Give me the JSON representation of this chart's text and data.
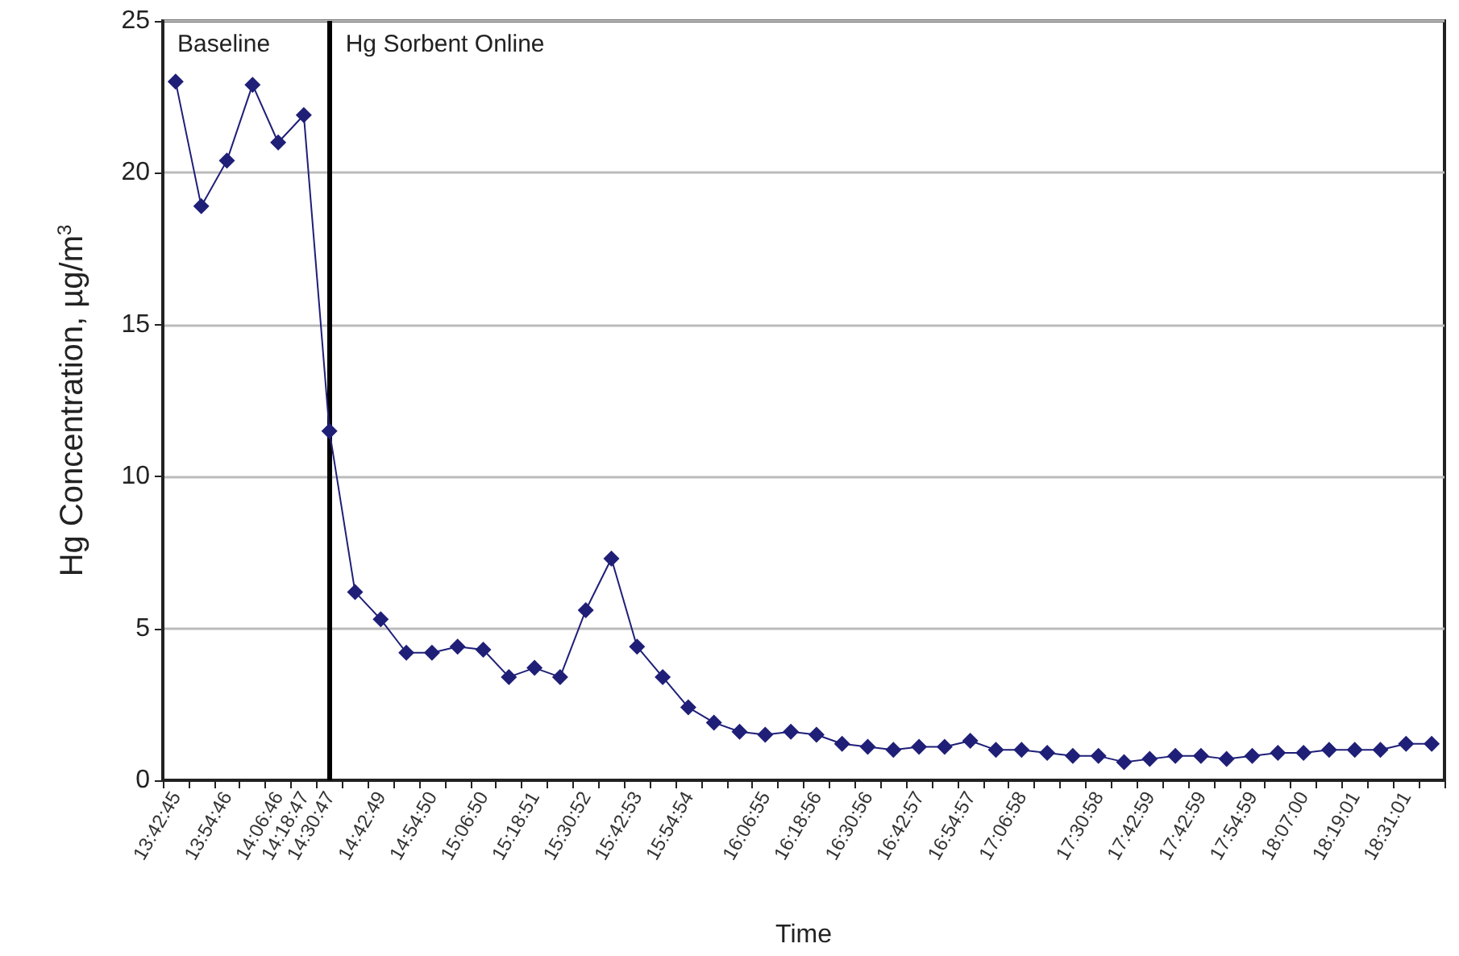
{
  "chart_data": {
    "type": "line",
    "xlabel": "Time",
    "ylabel": "Hg Concentration, µg/m$^{3}$",
    "categories": [
      "13:42:45",
      null,
      "13:54:46",
      null,
      "14:06:46",
      "14:18:47",
      "14:30:47",
      null,
      "14:42:49",
      null,
      "14:54:50",
      null,
      "15:06:50",
      null,
      "15:18:51",
      null,
      "15:30:52",
      null,
      "15:42:53",
      null,
      "15:54:54",
      null,
      null,
      "16:06:55",
      null,
      "16:18:56",
      null,
      "16:30:56",
      null,
      "16:42:57",
      null,
      "16:54:57",
      null,
      "17:06:58",
      null,
      null,
      "17:30:58",
      null,
      "17:42:59",
      null,
      "17:42:59",
      null,
      "17:54:59",
      null,
      "18:07:00",
      null,
      "18:19:01",
      null,
      "18:31:01",
      null
    ],
    "series": [
      {
        "color": "#1f1f78",
        "values": [
          23.0,
          18.9,
          20.4,
          22.9,
          21.0,
          21.9,
          11.5,
          6.2,
          5.3,
          4.2,
          4.2,
          4.4,
          4.3,
          3.4,
          3.7,
          3.4,
          5.6,
          7.3,
          4.4,
          3.4,
          2.4,
          1.9,
          1.6,
          1.5,
          1.6,
          1.5,
          1.2,
          1.1,
          1.0,
          1.1,
          1.1,
          1.3,
          1.0,
          1.0,
          0.9,
          0.8,
          0.8,
          0.6,
          0.7,
          0.8,
          0.8,
          0.7,
          0.8,
          0.9,
          0.9,
          1.0,
          1.0,
          1.0,
          1.2,
          1.2
        ]
      }
    ],
    "ylim": [
      0,
      25
    ],
    "yticks": [
      0,
      5,
      10,
      15,
      20,
      25
    ],
    "grid": "y",
    "marker": "diamond",
    "line_style": "solid",
    "ref_lines": [
      {
        "axis": "x",
        "value": "14:30:47",
        "color": "#000000",
        "line_style": "solid"
      }
    ],
    "annotations": [
      "Baseline",
      "Hg Sorbent Online"
    ]
  }
}
